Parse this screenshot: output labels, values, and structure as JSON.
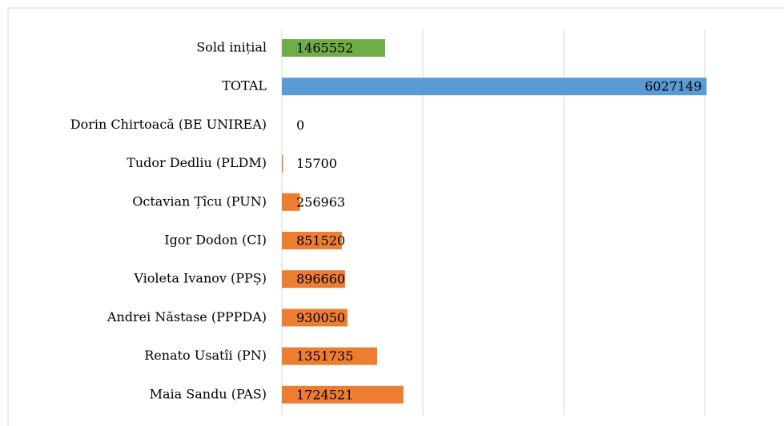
{
  "chart_data": {
    "type": "bar",
    "orientation": "horizontal",
    "categories": [
      "Sold inițial",
      "TOTAL",
      "Dorin Chirtoacă (BE UNIREA)",
      "Tudor Dedliu (PLDM)",
      "Octavian Țîcu (PUN)",
      "Igor Dodon (CI)",
      "Violeta Ivanov (PPȘ)",
      "Andrei Năstase (PPPDA)",
      "Renato Usatîi (PN)",
      "Maia Sandu (PAS)"
    ],
    "values": [
      1465552,
      6027149,
      0,
      15700,
      256963,
      851520,
      896660,
      930050,
      1351735,
      1724521
    ],
    "colors": [
      "#70ad47",
      "#5b9bd5",
      "#ed7d31",
      "#ed7d31",
      "#ed7d31",
      "#ed7d31",
      "#ed7d31",
      "#ed7d31",
      "#ed7d31",
      "#ed7d31"
    ],
    "xlim": [
      0,
      6000000
    ],
    "xticks": [
      0,
      2000000,
      4000000,
      6000000
    ],
    "grid": true
  }
}
